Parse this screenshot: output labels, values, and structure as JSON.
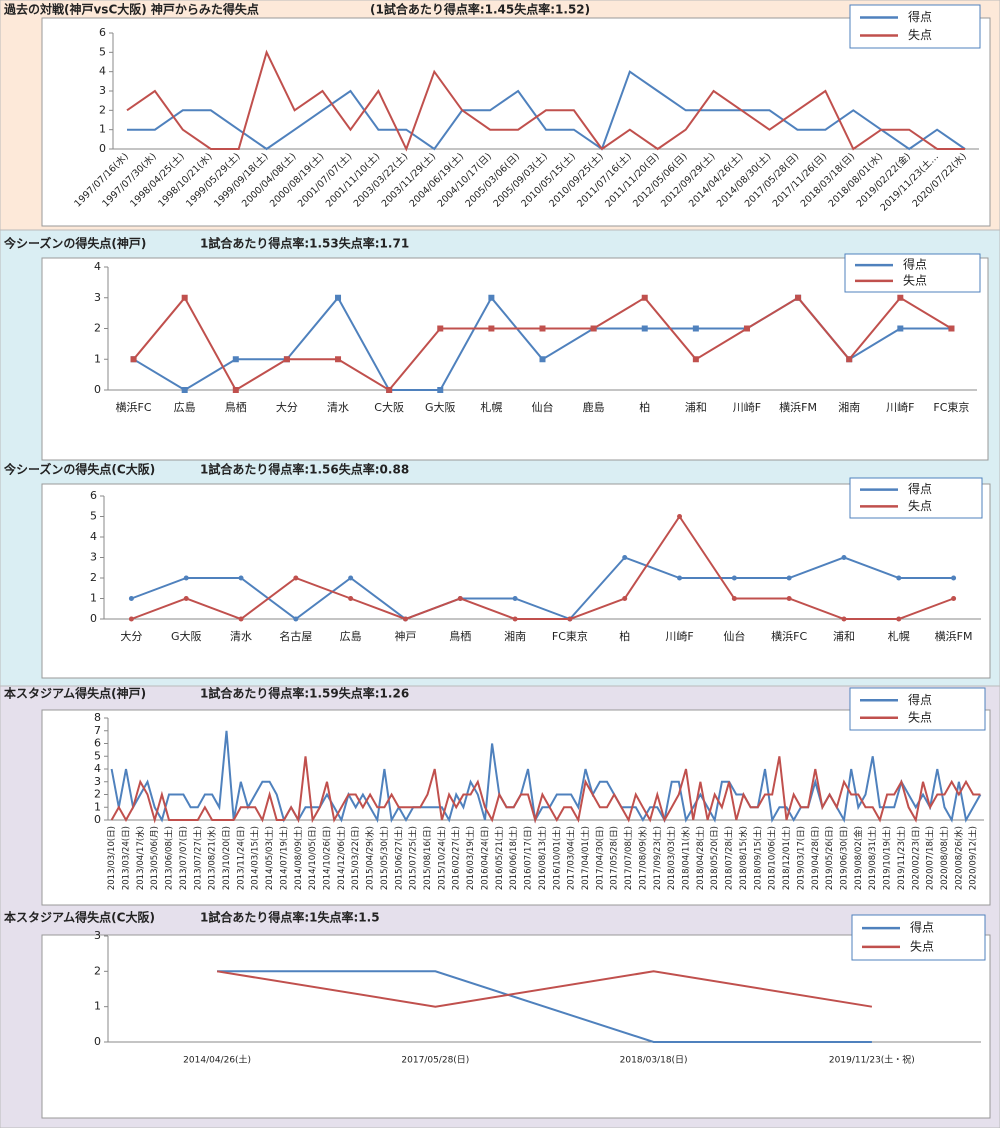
{
  "chart_data": [
    {
      "type": "line",
      "title": "過去の対戦(神戸vsC大阪)  神戸からみた得失点",
      "subtitle": "(1試合あたり得点率:1.45失点率:1.52)",
      "categories": [
        "1997/07/16(水)",
        "1997/07/30(水)",
        "1998/04/25(土)",
        "1998/10/21(水)",
        "1999/05/29(土)",
        "1999/09/18(土)",
        "2000/04/08(土)",
        "2000/08/19(土)",
        "2001/07/07(土)",
        "2001/11/10(土)",
        "2003/03/22(土)",
        "2003/11/29(土)",
        "2004/06/19(土)",
        "2004/10/17(日)",
        "2005/03/06(日)",
        "2005/09/03(土)",
        "2010/05/15(土)",
        "2010/09/25(土)",
        "2011/07/16(土)",
        "2011/11/20(日)",
        "2012/05/06(日)",
        "2012/09/29(土)",
        "2014/04/26(土)",
        "2014/08/30(土)",
        "2017/05/28(日)",
        "2017/11/26(日)",
        "2018/03/18(日)",
        "2018/08/01(水)",
        "2019/02/22(金)",
        "2019/11/23(土…",
        "2020/07/22(水)"
      ],
      "series": [
        {
          "name": "得点",
          "color": "#4f81bd",
          "values": [
            1,
            1,
            2,
            2,
            1,
            0,
            1,
            2,
            3,
            1,
            1,
            0,
            2,
            2,
            3,
            1,
            1,
            0,
            4,
            3,
            2,
            2,
            2,
            2,
            1,
            1,
            2,
            1,
            0,
            1,
            0
          ]
        },
        {
          "name": "失点",
          "color": "#c0504d",
          "values": [
            2,
            3,
            1,
            0,
            0,
            5,
            2,
            3,
            1,
            3,
            0,
            4,
            2,
            1,
            1,
            2,
            2,
            0,
            1,
            0,
            1,
            3,
            2,
            1,
            2,
            3,
            0,
            1,
            1,
            0,
            0
          ]
        }
      ],
      "ylim": [
        0,
        6
      ],
      "yticks": [
        0,
        1,
        2,
        3,
        4,
        5,
        6
      ],
      "marker": "none",
      "legend": "top-right"
    },
    {
      "type": "line",
      "title": "今シーズンの得失点(神戸)",
      "subtitle": "1試合あたり得点率:1.53失点率:1.71",
      "categories": [
        "横浜FC",
        "広島",
        "鳥栖",
        "大分",
        "清水",
        "C大阪",
        "G大阪",
        "札幌",
        "仙台",
        "鹿島",
        "柏",
        "浦和",
        "川崎F",
        "横浜FM",
        "湘南",
        "川崎F",
        "FC東京"
      ],
      "series": [
        {
          "name": "得点",
          "color": "#4f81bd",
          "values": [
            1,
            0,
            1,
            1,
            3,
            0,
            0,
            3,
            1,
            2,
            2,
            2,
            2,
            3,
            1,
            2,
            2
          ]
        },
        {
          "name": "失点",
          "color": "#c0504d",
          "values": [
            1,
            3,
            0,
            1,
            1,
            0,
            2,
            2,
            2,
            2,
            3,
            1,
            2,
            3,
            1,
            3,
            2
          ]
        }
      ],
      "ylim": [
        0,
        4
      ],
      "yticks": [
        0,
        1,
        2,
        3,
        4
      ],
      "marker": "square",
      "legend": "top-right"
    },
    {
      "type": "line",
      "title": "今シーズンの得失点(C大阪)",
      "subtitle": "1試合あたり得点率:1.56失点率:0.88",
      "categories": [
        "大分",
        "G大阪",
        "清水",
        "名古屋",
        "広島",
        "神戸",
        "鳥栖",
        "湘南",
        "FC東京",
        "柏",
        "川崎F",
        "仙台",
        "横浜FC",
        "浦和",
        "札幌",
        "横浜FM"
      ],
      "series": [
        {
          "name": "得点",
          "color": "#4f81bd",
          "values": [
            1,
            2,
            2,
            0,
            2,
            0,
            1,
            1,
            0,
            3,
            2,
            2,
            2,
            3,
            2,
            2
          ]
        },
        {
          "name": "失点",
          "color": "#c0504d",
          "values": [
            0,
            1,
            0,
            2,
            1,
            0,
            1,
            0,
            0,
            1,
            5,
            1,
            1,
            0,
            0,
            1
          ]
        }
      ],
      "ylim": [
        0,
        6
      ],
      "yticks": [
        0,
        1,
        2,
        3,
        4,
        5,
        6
      ],
      "marker": "circle",
      "legend": "top-right"
    },
    {
      "type": "line",
      "title": "本スタジアム得失点(神戸)",
      "subtitle": "1試合あたり得点率:1.59失点率:1.26",
      "categories": [
        "2013/03/10(日)",
        null,
        "2013/03/24(日)",
        null,
        "2013/04/17(水)",
        null,
        "2013/05/06(月)",
        null,
        "2013/06/08(土)",
        null,
        "2013/07/07(日)",
        null,
        "2013/07/27(土)",
        null,
        "2013/08/21(水)",
        null,
        "2013/10/20(日)",
        null,
        "2013/11/24(日)",
        null,
        "2014/03/15(土)",
        null,
        "2014/05/03(土)",
        null,
        "2014/07/19(土)",
        null,
        "2014/08/09(土)",
        null,
        "2014/10/05(日)",
        null,
        "2014/10/26(日)",
        null,
        "2014/12/06(土)",
        null,
        "2015/03/22(日)",
        null,
        "2015/04/29(水)",
        null,
        "2015/05/30(土)",
        null,
        "2015/06/27(土)",
        null,
        "2015/07/25(土)",
        null,
        "2015/08/16(日)",
        null,
        "2015/10/24(土)",
        null,
        "2016/02/27(土)",
        null,
        "2016/03/19(土)",
        null,
        "2016/04/24(日)",
        null,
        "2016/05/21(土)",
        null,
        "2016/06/18(土)",
        null,
        "2016/07/17(日)",
        null,
        "2016/08/13(土)",
        null,
        "2016/10/01(土)",
        null,
        "2017/03/04(土)",
        null,
        "2017/04/01(土)",
        null,
        "2017/04/30(日)",
        null,
        "2017/05/28(日)",
        null,
        "2017/07/08(土)",
        null,
        "2017/08/09(水)",
        null,
        "2017/09/23(土)",
        null,
        "2018/03/03(土)",
        null,
        "2018/04/11(水)",
        null,
        "2018/04/28(土)",
        null,
        "2018/05/20(日)",
        null,
        "2018/07/28(土)",
        null,
        "2018/08/15(水)",
        null,
        "2018/09/15(土)",
        null,
        "2018/10/06(土)",
        null,
        "2018/12/01(土)",
        null,
        "2019/03/17(日)",
        null,
        "2019/04/28(日)",
        null,
        "2019/05/26(日)",
        null,
        "2019/06/30(日)",
        null,
        "2019/08/02(金)",
        null,
        "2019/08/31(土)",
        null,
        "2019/10/19(土)",
        null,
        "2019/11/23(土)",
        null,
        "2020/02/23(日)",
        null,
        "2020/07/18(土)",
        null,
        "2020/08/08(土)",
        null,
        "2020/08/26(水)",
        null,
        "2020/09/12(土)",
        null
      ],
      "series": [
        {
          "name": "得点",
          "color": "#4f81bd",
          "values": [
            4,
            1,
            4,
            1,
            2,
            3,
            1,
            0,
            2,
            2,
            2,
            1,
            1,
            2,
            2,
            1,
            7,
            0,
            3,
            1,
            2,
            3,
            3,
            2,
            0,
            1,
            0,
            1,
            1,
            1,
            2,
            1,
            0,
            2,
            1,
            2,
            1,
            0,
            4,
            0,
            1,
            0,
            1,
            1,
            1,
            1,
            1,
            0,
            2,
            1,
            3,
            2,
            0,
            6,
            2,
            1,
            1,
            2,
            4,
            0,
            1,
            1,
            2,
            2,
            2,
            1,
            4,
            2,
            3,
            3,
            2,
            1,
            1,
            1,
            0,
            1,
            1,
            0,
            3,
            3,
            0,
            1,
            2,
            1,
            0,
            3,
            3,
            2,
            2,
            1,
            1,
            4,
            0,
            1,
            1,
            0,
            1,
            1,
            3,
            1,
            2,
            1,
            0,
            4,
            1,
            2,
            5,
            1,
            1,
            1,
            3,
            2,
            1,
            2,
            1,
            4,
            1,
            0,
            3,
            0,
            1,
            2
          ]
        },
        {
          "name": "失点",
          "color": "#c0504d",
          "values": [
            0,
            1,
            0,
            1,
            3,
            2,
            0,
            2,
            0,
            0,
            0,
            0,
            0,
            1,
            0,
            0,
            0,
            0,
            1,
            1,
            1,
            0,
            2,
            0,
            0,
            1,
            0,
            5,
            0,
            1,
            3,
            0,
            1,
            2,
            2,
            1,
            2,
            1,
            1,
            2,
            1,
            1,
            1,
            1,
            2,
            4,
            0,
            2,
            1,
            2,
            2,
            3,
            1,
            0,
            2,
            1,
            1,
            2,
            2,
            0,
            2,
            1,
            0,
            1,
            1,
            0,
            3,
            2,
            1,
            1,
            2,
            1,
            0,
            2,
            1,
            0,
            2,
            0,
            1,
            2,
            4,
            0,
            3,
            0,
            2,
            1,
            3,
            0,
            2,
            1,
            1,
            2,
            2,
            5,
            0,
            2,
            1,
            1,
            4,
            1,
            2,
            1,
            3,
            2,
            2,
            1,
            1,
            0,
            2,
            2,
            3,
            1,
            0,
            3,
            1,
            2,
            2,
            3,
            2,
            3,
            2,
            2
          ]
        }
      ],
      "ylim": [
        0,
        8
      ],
      "yticks": [
        0,
        1,
        2,
        3,
        4,
        5,
        6,
        7,
        8
      ],
      "marker": "none",
      "legend": "top-right"
    },
    {
      "type": "line",
      "title": "本スタジアム得失点(C大阪)",
      "subtitle": "1試合あたり得点率:1失点率:1.5",
      "categories": [
        "2014/04/26(土)",
        "2017/05/28(日)",
        "2018/03/18(日)",
        "2019/11/23(土・祝)"
      ],
      "series": [
        {
          "name": "得点",
          "color": "#4f81bd",
          "values": [
            2,
            2,
            0,
            0
          ]
        },
        {
          "name": "失点",
          "color": "#c0504d",
          "values": [
            2,
            1,
            2,
            1
          ]
        }
      ],
      "ylim": [
        0,
        3
      ],
      "yticks": [
        0,
        1,
        2,
        3
      ],
      "marker": "none",
      "legend": "top-right"
    }
  ]
}
